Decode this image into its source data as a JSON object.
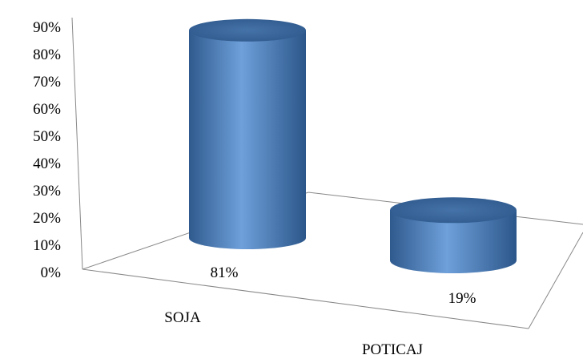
{
  "chart_data": {
    "type": "bar",
    "style": "3d-cylinder",
    "categories": [
      "SOJA",
      "POTICAJ"
    ],
    "values": [
      81,
      19
    ],
    "data_labels": [
      "81%",
      "19%"
    ],
    "y_ticks": [
      "0%",
      "10%",
      "20%",
      "30%",
      "40%",
      "50%",
      "60%",
      "70%",
      "80%",
      "90%"
    ],
    "ylim": [
      0,
      90
    ],
    "y_unit": "%",
    "title": "",
    "xlabel": "",
    "ylabel": "",
    "grid": false,
    "legend": "none",
    "colors": {
      "bar_body": "#4F81BD",
      "bar_highlight": "#6FA0DA",
      "bar_shadow": "#2F5A8E",
      "bar_top": "#3A6698",
      "axis_lines": "#888888"
    }
  }
}
